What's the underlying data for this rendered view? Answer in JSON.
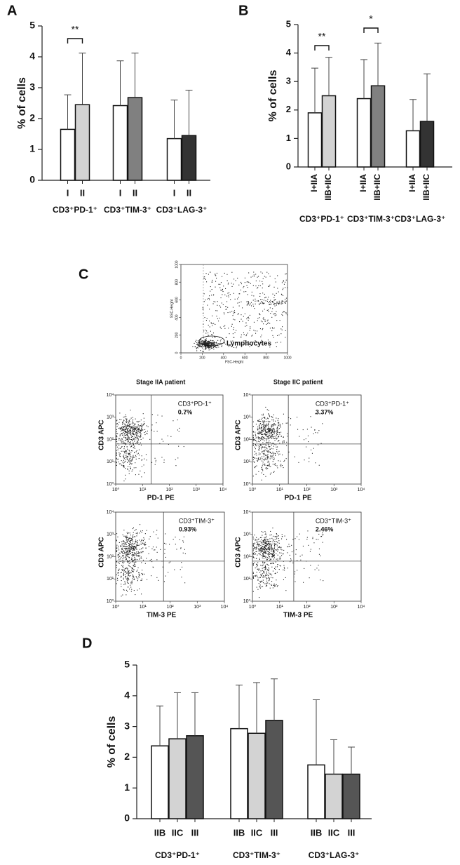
{
  "chart_data": [
    {
      "type": "bar",
      "panel": "A",
      "ylabel": "% of cells",
      "ylim": [
        0,
        5
      ],
      "yticks": [
        0,
        1,
        2,
        3,
        4,
        5
      ],
      "categories": [
        "CD3⁺PD-1⁺",
        "CD3⁺TIM-3⁺",
        "CD3⁺LAG-3⁺"
      ],
      "series": [
        {
          "name": "I",
          "color": "#ffffff",
          "values": [
            1.65,
            2.42,
            1.35
          ],
          "errors": [
            1.12,
            1.45,
            1.25
          ]
        },
        {
          "name": "II",
          "colors": [
            "#d3d3d3",
            "#808080",
            "#333333"
          ],
          "values": [
            2.45,
            2.68,
            1.45
          ],
          "errors": [
            1.67,
            1.44,
            1.47
          ]
        }
      ],
      "significance": [
        "**",
        null,
        null
      ]
    },
    {
      "type": "bar",
      "panel": "B",
      "ylabel": "% of cells",
      "ylim": [
        0,
        5
      ],
      "yticks": [
        0,
        1,
        2,
        3,
        4,
        5
      ],
      "categories": [
        "CD3⁺PD-1⁺",
        "CD3⁺TIM-3⁺",
        "CD3⁺LAG-3⁺"
      ],
      "series": [
        {
          "name": "I+IIA",
          "color": "#ffffff",
          "values": [
            1.9,
            2.4,
            1.27
          ],
          "errors": [
            1.57,
            1.37,
            1.1
          ]
        },
        {
          "name": "IIB+IIC",
          "colors": [
            "#d3d3d3",
            "#808080",
            "#333333"
          ],
          "values": [
            2.5,
            2.85,
            1.6
          ],
          "errors": [
            1.35,
            1.5,
            1.67
          ]
        }
      ],
      "significance": [
        "**",
        "*",
        null
      ]
    },
    {
      "type": "flow",
      "panel": "C",
      "gating": {
        "xlabel": "FSC-Height",
        "ylabel": "SSC-Height",
        "xlim": [
          0,
          1000
        ],
        "ylim": [
          0,
          1000
        ],
        "xticks": [
          0,
          200,
          400,
          600,
          800,
          1000
        ],
        "yticks": [
          0,
          200,
          400,
          600,
          800,
          1000
        ],
        "gate_label": "Lymphocytes"
      },
      "log_scale": true,
      "lim": [
        1,
        10000
      ],
      "log_ticks": [
        {
          "value": 1,
          "label": "10⁰"
        },
        {
          "value": 10,
          "label": "10¹"
        },
        {
          "value": 100,
          "label": "10²"
        },
        {
          "value": 1000,
          "label": "10³"
        },
        {
          "value": 10000,
          "label": "10⁴"
        }
      ],
      "plots": [
        {
          "title": "Stage IIA patient",
          "xlabel": "PD-1 PE",
          "ylabel": "CD3 APC",
          "gate_label": "CD3⁺PD-1⁺",
          "percent": "0.7%"
        },
        {
          "title": "Stage IIC patient",
          "xlabel": "PD-1 PE",
          "ylabel": "CD3 APC",
          "gate_label": "CD3⁺PD-1⁺",
          "percent": "3.37%"
        },
        {
          "xlabel": "TIM-3  PE",
          "ylabel": "CD3 APC",
          "gate_label": "CD3⁺TIM-3⁺",
          "percent": "0.93%"
        },
        {
          "xlabel": "TIM-3  PE",
          "ylabel": "CD3 APC",
          "gate_label": "CD3⁺TIM-3⁺",
          "percent": "2.46%"
        }
      ]
    },
    {
      "type": "bar",
      "panel": "D",
      "ylabel": "% of cells",
      "ylim": [
        0,
        5
      ],
      "yticks": [
        0,
        1,
        2,
        3,
        4,
        5
      ],
      "categories": [
        "CD3⁺PD-1⁺",
        "CD3⁺TIM-3⁺",
        "CD3⁺LAG-3⁺"
      ],
      "series": [
        {
          "name": "IIB",
          "color": "#ffffff",
          "values": [
            2.37,
            2.93,
            1.75
          ],
          "errors": [
            1.3,
            1.42,
            2.12
          ]
        },
        {
          "name": "IIC",
          "color": "#d3d3d3",
          "values": [
            2.6,
            2.78,
            1.45
          ],
          "errors": [
            1.5,
            1.65,
            1.12
          ]
        },
        {
          "name": "III",
          "color": "#555555",
          "values": [
            2.7,
            3.2,
            1.45
          ],
          "errors": [
            1.4,
            1.35,
            0.88
          ]
        }
      ]
    }
  ]
}
